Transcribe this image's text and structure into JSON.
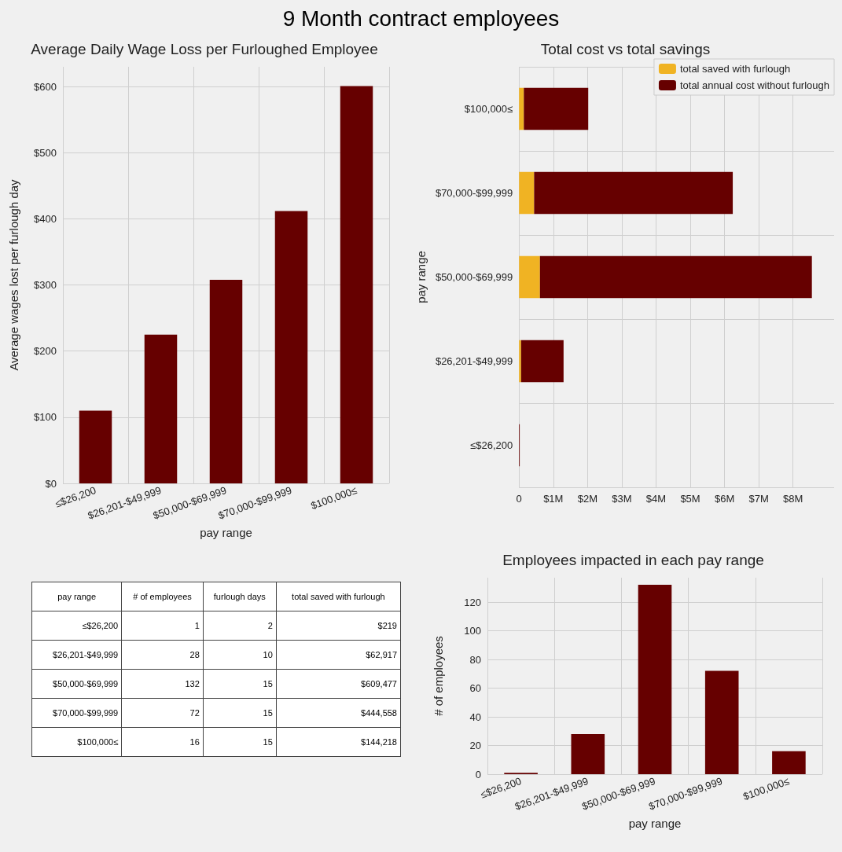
{
  "chart_data": [
    {
      "type": "bar",
      "title": "Average Daily Wage Loss per Furloughed Employee",
      "annotations": [
        "9 Month contract employees"
      ],
      "xlabel": "pay range",
      "ylabel": "Average wages lost per furlough day",
      "categories": [
        "≤$26,200",
        "$26,201-$49,999",
        "$50,000-$69,999",
        "$70,000-$99,999",
        "$100,000≤"
      ],
      "values": [
        110,
        225,
        308,
        412,
        601
      ],
      "color": "#660000",
      "ylim": [
        0,
        630
      ],
      "yticks": [
        {
          "value": 0,
          "label": "$0"
        },
        {
          "value": 100,
          "label": "$100"
        },
        {
          "value": 200,
          "label": "$200"
        },
        {
          "value": 300,
          "label": "$300"
        },
        {
          "value": 400,
          "label": "$400"
        },
        {
          "value": 500,
          "label": "$500"
        },
        {
          "value": 600,
          "label": "$600"
        }
      ],
      "grid": true
    },
    {
      "type": "bar",
      "title": "Total cost vs total savings",
      "ylabel": "pay range",
      "orientation": "horizontal",
      "stacked": true,
      "categories": [
        "$100,000≤",
        "$70,000-$99,999",
        "$50,000-$69,999",
        "$26,201-$49,999",
        "≤$26,200"
      ],
      "series": [
        {
          "name": "total saved with furlough",
          "color": "#f0b323",
          "values": [
            0.14,
            0.44,
            0.61,
            0.06,
            0
          ]
        },
        {
          "name": "total annual cost without furlough",
          "color": "#660000",
          "values": [
            1.88,
            5.8,
            7.94,
            1.24,
            0.02
          ]
        }
      ],
      "xlim": [
        0,
        9.2
      ],
      "xticks": [
        0,
        {
          "value": 1,
          "label": "$1M"
        },
        {
          "value": 2,
          "label": "$2M"
        },
        {
          "value": 3,
          "label": "$3M"
        },
        {
          "value": 4,
          "label": "$4M"
        },
        {
          "value": 5,
          "label": "$5M"
        },
        {
          "value": 6,
          "label": "$6M"
        },
        {
          "value": 7,
          "label": "$7M"
        },
        {
          "value": 8,
          "label": "$8M"
        }
      ],
      "grid": true,
      "legend": "top right"
    },
    {
      "type": "other",
      "categories": [
        "pay range",
        "# of employees",
        "furlough days",
        "total saved with furlough"
      ],
      "cell_labels": [
        [
          "≤$26,200",
          "1",
          "2",
          "$219"
        ],
        [
          "$26,201-$49,999",
          "28",
          "10",
          "$62,917"
        ],
        [
          "$50,000-$69,999",
          "132",
          "15",
          "$609,477"
        ],
        [
          "$70,000-$99,999",
          "72",
          "15",
          "$444,558"
        ],
        [
          "$100,000≤",
          "16",
          "15",
          "$144,218"
        ]
      ]
    },
    {
      "type": "bar",
      "title": "Employees impacted in each pay range",
      "xlabel": "pay range",
      "ylabel": "# of employees",
      "categories": [
        "≤$26,200",
        "$26,201-$49,999",
        "$50,000-$69,999",
        "$70,000-$99,999",
        "$100,000≤"
      ],
      "values": [
        1,
        28,
        132,
        72,
        16
      ],
      "color": "#660000",
      "ylim": [
        0,
        137
      ],
      "yticks": [
        0,
        20,
        40,
        60,
        80,
        100,
        120
      ],
      "grid": true
    }
  ]
}
